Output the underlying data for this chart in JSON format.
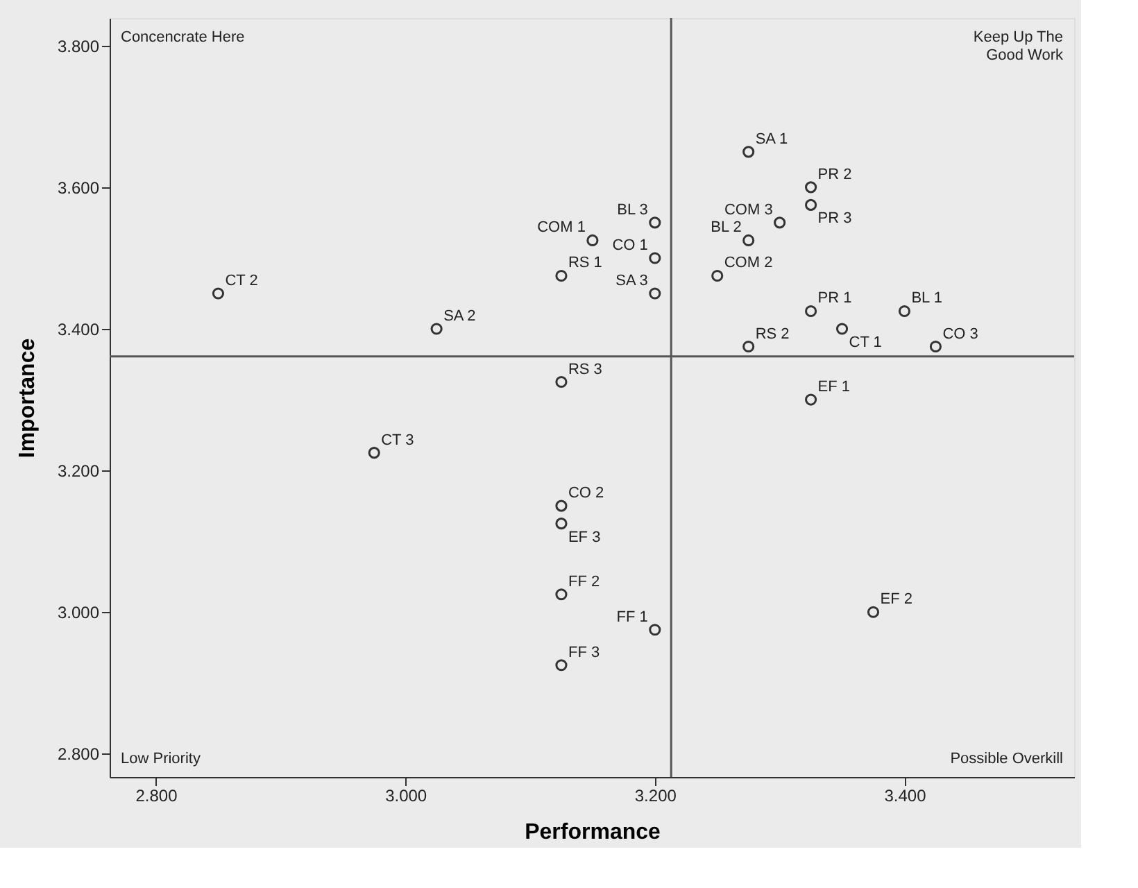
{
  "chart_data": {
    "type": "scatter",
    "xlabel": "Performance",
    "ylabel": "Importance",
    "xlim": [
      2.763,
      3.536
    ],
    "ylim": [
      2.767,
      3.839
    ],
    "xticks": [
      {
        "value": 2.8,
        "label": "2.800"
      },
      {
        "value": 3.0,
        "label": "3.000"
      },
      {
        "value": 3.2,
        "label": "3.200"
      },
      {
        "value": 3.4,
        "label": "3.400"
      }
    ],
    "yticks": [
      {
        "value": 2.8,
        "label": "2.800"
      },
      {
        "value": 3.0,
        "label": "3.000"
      },
      {
        "value": 3.2,
        "label": "3.200"
      },
      {
        "value": 3.4,
        "label": "3.400"
      },
      {
        "value": 3.6,
        "label": "3.600"
      },
      {
        "value": 3.8,
        "label": "3.800"
      }
    ],
    "grid": false,
    "marker": "circle",
    "ref_lines": [
      {
        "axis": "x",
        "value": 3.213,
        "color": "#555555"
      },
      {
        "axis": "y",
        "value": 3.361,
        "color": "#555555"
      }
    ],
    "annotations": [
      "Concencrate Here",
      "Keep Up The\nGood Work",
      "Low Priority",
      "Possible Overkill"
    ],
    "series": [
      {
        "name": "CT 2",
        "color": "#333333",
        "x": [
          2.85
        ],
        "values": [
          3.45
        ]
      },
      {
        "name": "SA 2",
        "color": "#333333",
        "x": [
          3.025
        ],
        "values": [
          3.4
        ]
      },
      {
        "name": "CT 3",
        "color": "#333333",
        "x": [
          2.975
        ],
        "values": [
          3.225
        ]
      },
      {
        "name": "RS 1",
        "color": "#333333",
        "x": [
          3.125
        ],
        "values": [
          3.475
        ]
      },
      {
        "name": "COM 1",
        "color": "#333333",
        "x": [
          3.15
        ],
        "values": [
          3.525
        ]
      },
      {
        "name": "BL 3",
        "color": "#333333",
        "x": [
          3.2
        ],
        "values": [
          3.55
        ]
      },
      {
        "name": "CO 1",
        "color": "#333333",
        "x": [
          3.2
        ],
        "values": [
          3.5
        ]
      },
      {
        "name": "SA 3",
        "color": "#333333",
        "x": [
          3.2
        ],
        "values": [
          3.45
        ]
      },
      {
        "name": "RS 3",
        "color": "#333333",
        "x": [
          3.125
        ],
        "values": [
          3.325
        ]
      },
      {
        "name": "CO 2",
        "color": "#333333",
        "x": [
          3.125
        ],
        "values": [
          3.15
        ]
      },
      {
        "name": "EF 3",
        "color": "#333333",
        "x": [
          3.125
        ],
        "values": [
          3.125
        ]
      },
      {
        "name": "FF 2",
        "color": "#333333",
        "x": [
          3.125
        ],
        "values": [
          3.025
        ]
      },
      {
        "name": "FF 1",
        "color": "#333333",
        "x": [
          3.2
        ],
        "values": [
          2.975
        ]
      },
      {
        "name": "FF 3",
        "color": "#333333",
        "x": [
          3.125
        ],
        "values": [
          2.925
        ]
      },
      {
        "name": "SA 1",
        "color": "#333333",
        "x": [
          3.275
        ],
        "values": [
          3.65
        ]
      },
      {
        "name": "PR 2",
        "color": "#333333",
        "x": [
          3.325
        ],
        "values": [
          3.6
        ]
      },
      {
        "name": "PR 3",
        "color": "#333333",
        "x": [
          3.325
        ],
        "values": [
          3.575
        ]
      },
      {
        "name": "COM 3",
        "color": "#333333",
        "x": [
          3.3
        ],
        "values": [
          3.55
        ]
      },
      {
        "name": "BL 2",
        "color": "#333333",
        "x": [
          3.275
        ],
        "values": [
          3.525
        ]
      },
      {
        "name": "COM 2",
        "color": "#333333",
        "x": [
          3.25
        ],
        "values": [
          3.475
        ]
      },
      {
        "name": "PR 1",
        "color": "#333333",
        "x": [
          3.325
        ],
        "values": [
          3.425
        ]
      },
      {
        "name": "CT 1",
        "color": "#333333",
        "x": [
          3.35
        ],
        "values": [
          3.4
        ]
      },
      {
        "name": "BL 1",
        "color": "#333333",
        "x": [
          3.4
        ],
        "values": [
          3.425
        ]
      },
      {
        "name": "RS 2",
        "color": "#333333",
        "x": [
          3.275
        ],
        "values": [
          3.375
        ]
      },
      {
        "name": "CO 3",
        "color": "#333333",
        "x": [
          3.425
        ],
        "values": [
          3.375
        ]
      },
      {
        "name": "EF 1",
        "color": "#333333",
        "x": [
          3.325
        ],
        "values": [
          3.3
        ]
      },
      {
        "name": "EF 2",
        "color": "#333333",
        "x": [
          3.375
        ],
        "values": [
          3.0
        ]
      }
    ]
  }
}
